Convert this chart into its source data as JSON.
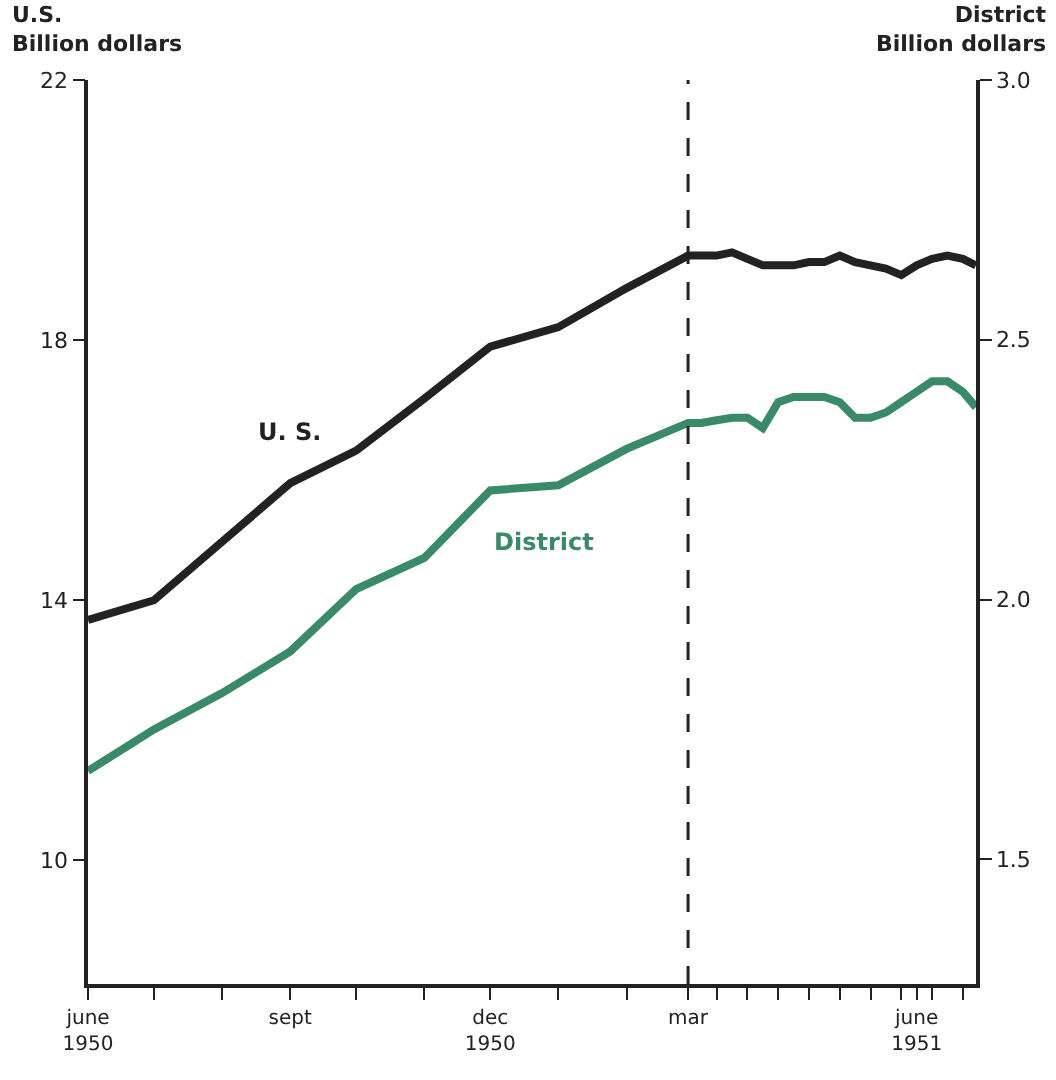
{
  "chart_data": {
    "type": "line",
    "ylabel": "U.S.\nBillion dollars",
    "y2label": "District\nBillion dollars",
    "series": [
      {
        "name": "U. S.",
        "color": "#222222",
        "x": [
          "1950-06-01",
          "1950-07-01",
          "1950-08-01",
          "1950-09-01",
          "1950-10-01",
          "1950-11-01",
          "1950-12-01",
          "1951-01-01",
          "1951-02-01",
          "1951-03-01",
          "1951-03-07",
          "1951-03-14",
          "1951-03-21",
          "1951-03-28",
          "1951-04-04",
          "1951-04-11",
          "1951-04-18",
          "1951-04-25",
          "1951-05-02",
          "1951-05-09",
          "1951-05-16",
          "1951-05-23",
          "1951-05-30",
          "1951-06-06",
          "1951-06-13",
          "1951-06-20",
          "1951-06-27",
          "1951-07-04",
          "1951-07-10"
        ],
        "values": [
          13.7,
          14.0,
          14.9,
          15.8,
          16.3,
          17.1,
          17.9,
          18.2,
          18.8,
          19.3,
          19.3,
          19.3,
          19.35,
          19.25,
          19.15,
          19.15,
          19.15,
          19.2,
          19.2,
          19.3,
          19.2,
          19.15,
          19.1,
          19.0,
          19.15,
          19.25,
          19.3,
          19.25,
          19.15
        ]
      },
      {
        "name": "District",
        "color": "#3a8a6a",
        "axis": "y2",
        "x": [
          "1950-06-01",
          "1950-07-01",
          "1950-08-01",
          "1950-09-01",
          "1950-10-01",
          "1950-11-01",
          "1950-12-01",
          "1951-01-01",
          "1951-02-01",
          "1951-03-01",
          "1951-03-07",
          "1951-03-14",
          "1951-03-21",
          "1951-03-28",
          "1951-04-04",
          "1951-04-11",
          "1951-04-18",
          "1951-04-25",
          "1951-05-02",
          "1951-05-09",
          "1951-05-16",
          "1951-05-23",
          "1951-05-30",
          "1951-06-06",
          "1951-06-13",
          "1951-06-20",
          "1951-06-27",
          "1951-07-04",
          "1951-07-10"
        ],
        "values": [
          1.67,
          1.75,
          1.82,
          1.9,
          2.02,
          2.08,
          2.21,
          2.22,
          2.29,
          2.34,
          2.34,
          2.345,
          2.35,
          2.35,
          2.33,
          2.38,
          2.39,
          2.39,
          2.39,
          2.38,
          2.35,
          2.35,
          2.36,
          2.38,
          2.4,
          2.42,
          2.42,
          2.4,
          2.37
        ]
      }
    ],
    "xlim": [
      "1950-06-01",
      "1951-07-10"
    ],
    "xticks": [
      {
        "value": "1950-06-01",
        "label": "june\n1950"
      },
      {
        "value": "1950-07-01",
        "label": null
      },
      {
        "value": "1950-08-01",
        "label": null
      },
      {
        "value": "1950-09-01",
        "label": "sept"
      },
      {
        "value": "1950-10-01",
        "label": null
      },
      {
        "value": "1950-11-01",
        "label": null
      },
      {
        "value": "1950-12-01",
        "label": "dec\n1950"
      },
      {
        "value": "1951-01-01",
        "label": null
      },
      {
        "value": "1951-02-01",
        "label": null
      },
      {
        "value": "1951-03-01",
        "label": "mar"
      },
      {
        "value": "1951-03-14",
        "label": null
      },
      {
        "value": "1951-03-28",
        "label": null
      },
      {
        "value": "1951-04-11",
        "label": null
      },
      {
        "value": "1951-04-25",
        "label": null
      },
      {
        "value": "1951-05-09",
        "label": null
      },
      {
        "value": "1951-05-23",
        "label": null
      },
      {
        "value": "1951-06-06",
        "label": null
      },
      {
        "value": "1951-06-13",
        "label": "june\n1951"
      },
      {
        "value": "1951-06-20",
        "label": null
      },
      {
        "value": "1951-07-04",
        "label": null
      }
    ],
    "ylim": [
      8.1,
      22
    ],
    "yticks": [
      10,
      14,
      18,
      22
    ],
    "y2lim": [
      1.26,
      3.0
    ],
    "y2ticks": [
      {
        "value": 1.5,
        "label": "1.5"
      },
      {
        "value": 2.0,
        "label": "2.0"
      },
      {
        "value": 2.5,
        "label": "2.5"
      },
      {
        "value": 3.0,
        "label": "3.0"
      }
    ],
    "ref_lines": [
      {
        "axis": "x",
        "value": "1951-03-01",
        "color": "#222222",
        "line_style": "dashed"
      }
    ],
    "legend": false,
    "marker": "none",
    "line_style": "solid"
  }
}
